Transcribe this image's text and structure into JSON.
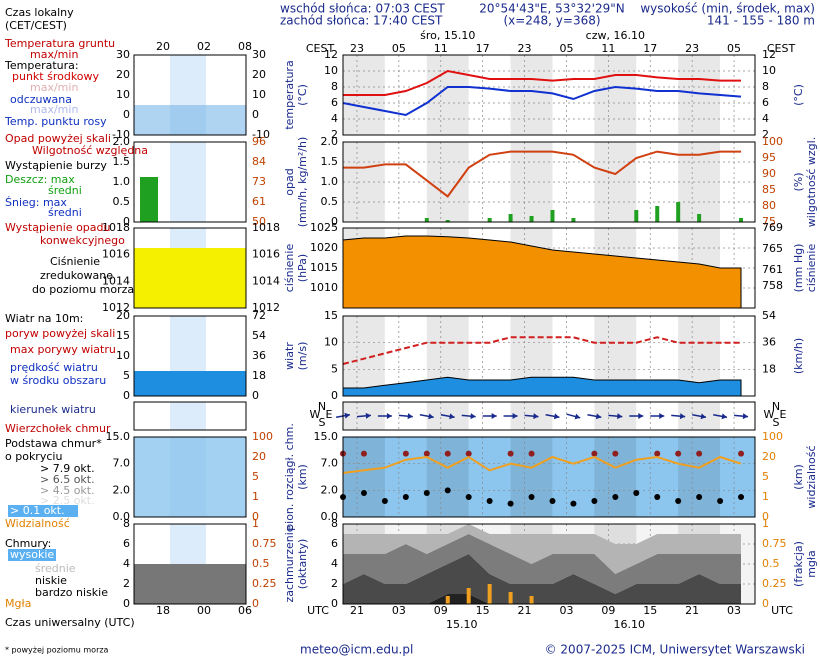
{
  "header": {
    "sunrise": "wschód słońca: 07:03 CEST",
    "sunset": "zachód słońca: 17:40 CEST",
    "coords": "20°54'43\"E, 53°32'29\"N",
    "grid_point": "(x=248, y=368)",
    "elevation_title": "wysokość (min, środek, max)",
    "elevation": "141 - 155 - 180 m"
  },
  "legend": {
    "local_time": [
      "Czas lokalny",
      "(CET/CEST)"
    ],
    "utc_time": "Czas uniwersalny (UTC)",
    "time_top": [
      "20",
      "02",
      "08"
    ],
    "time_bottom": [
      "18",
      "00",
      "06"
    ],
    "texts": {
      "ground": "Temperatura gruntu",
      "maxmin": "max/min",
      "temperature": "Temperatura:",
      "dew": "Temp. punktu rosy",
      "precip_over": "Opad powyżej skali",
      "storm": "Wystąpienie burzy",
      "rain_max": "Deszcz: max",
      "snow_max": "Śnieg: max",
      "snow_mean": "średni",
      "convective": [
        "Wystąpienie opadu",
        "konwekcyjnego"
      ],
      "pressure": [
        "zredukowane",
        "do poziomu morza"
      ],
      "wind10": "Wiatr na 10m:",
      "gust_over": "poryw powyżej skali",
      "wind_mid": "w środku obszaru",
      "cloud_top": "Wierzchołek chmur",
      "cloud_base": [
        "Podstawa chmur*",
        "o pokryciu"
      ],
      "okt45": "> 4.5 okt.",
      "okt25": "> 2.5 okt.",
      "okt01": "> 0.1 okt.",
      "clouds": "Chmury:"
    },
    "panels": [
      {
        "left_ticks": [
          30,
          20,
          10,
          0,
          -10
        ],
        "right_ticks": [
          30,
          20,
          10,
          0,
          -10
        ]
      },
      {
        "left_ticks": [
          "2.0",
          1.5,
          "1.0",
          0.5,
          0
        ],
        "right_ticks": [
          96,
          84,
          73,
          61,
          50
        ]
      },
      {
        "left_ticks": [
          1018,
          1016,
          1014,
          1012
        ],
        "right_ticks": [
          1018,
          1016,
          1014,
          1012
        ]
      },
      {
        "left_ticks": [
          20,
          15,
          10,
          5,
          0
        ],
        "right_ticks": [
          72,
          54,
          36,
          18,
          0
        ]
      },
      {
        "left_ticks": [],
        "right_ticks": []
      },
      {
        "left_ticks": [
          "15.0",
          "7.0",
          "2.0",
          "0.0"
        ],
        "right_ticks": [
          100,
          20,
          5,
          1,
          0
        ]
      },
      {
        "left_ticks": [
          8,
          6,
          4,
          2,
          0
        ],
        "right_ticks": [
          1,
          0.75,
          0.5,
          0.25,
          0
        ]
      }
    ]
  },
  "time_axis": {
    "xlim": [
      0,
      59
    ],
    "top_label": "CEST",
    "bottom_label": "UTC",
    "cest_ticks": [
      {
        "value": 2,
        "label": "23"
      },
      {
        "value": 8,
        "label": "05"
      },
      {
        "value": 14,
        "label": "11"
      },
      {
        "value": 20,
        "label": "17"
      },
      {
        "value": 26,
        "label": "23"
      },
      {
        "value": 32,
        "label": "05"
      },
      {
        "value": 38,
        "label": "11"
      },
      {
        "value": 44,
        "label": "17"
      },
      {
        "value": 50,
        "label": "23"
      },
      {
        "value": 56,
        "label": "05"
      }
    ],
    "utc_ticks": [
      {
        "value": 2,
        "label": "21"
      },
      {
        "value": 8,
        "label": "03"
      },
      {
        "value": 14,
        "label": "09"
      },
      {
        "value": 20,
        "label": "15"
      },
      {
        "value": 26,
        "label": "21"
      },
      {
        "value": 32,
        "label": "03"
      },
      {
        "value": 38,
        "label": "09"
      },
      {
        "value": 44,
        "label": "15"
      },
      {
        "value": 50,
        "label": "21"
      },
      {
        "value": 56,
        "label": "03"
      }
    ],
    "days_top": [
      {
        "value": 15,
        "label": "śro, 15.10"
      },
      {
        "value": 39,
        "label": "czw, 16.10"
      }
    ],
    "days_bottom": [
      {
        "value": 17,
        "label": "15.10"
      },
      {
        "value": 41,
        "label": "16.10"
      }
    ]
  },
  "chart_data": [
    {
      "type": "line",
      "ylabel": [
        "temperatura",
        "(°C)"
      ],
      "y2label": [
        "(°C)"
      ],
      "ylim": [
        2,
        12
      ],
      "yticks": [
        2,
        4,
        6,
        8,
        10,
        12
      ],
      "y2lim": [
        2,
        12
      ],
      "y2ticks": [
        2,
        4,
        6,
        8,
        10,
        12
      ],
      "grid": true,
      "background": "#ffffff",
      "x": [
        0,
        3,
        6,
        9,
        12,
        15,
        18,
        21,
        24,
        27,
        30,
        33,
        36,
        39,
        42,
        45,
        48,
        51,
        54,
        57
      ],
      "series": [
        {
          "name": "punkt środkowy",
          "color": "#e01010",
          "values": [
            7,
            7,
            7,
            7.5,
            8.5,
            10,
            9.5,
            9,
            9,
            9,
            8.8,
            9,
            9,
            9.5,
            9.5,
            9.2,
            9,
            9,
            8.8,
            8.8
          ]
        },
        {
          "name": "odczuwana",
          "color": "#1030d0",
          "values": [
            6,
            5.5,
            5,
            4.5,
            6,
            8,
            8,
            7.8,
            7.5,
            7.5,
            7.2,
            6.5,
            7.5,
            8,
            7.8,
            7.5,
            7.5,
            7.2,
            7,
            6.8
          ]
        }
      ]
    },
    {
      "type": "bar",
      "ylabel": [
        "opad",
        "(mm/h, kg/m²/h)"
      ],
      "y2label": [
        "(%)",
        "wilgotność wzgl."
      ],
      "ylim": [
        0,
        2
      ],
      "yticks": [
        0,
        0.5,
        {
          "value": 1,
          "label": "1.0"
        },
        1.5,
        {
          "value": 2,
          "label": "2.0"
        }
      ],
      "y2lim": [
        75,
        100
      ],
      "y2ticks": [
        75,
        80,
        85,
        90,
        95,
        100
      ],
      "y2color": "#c04000",
      "grid": true,
      "background": "#ffffff",
      "x": [
        0,
        3,
        6,
        9,
        12,
        15,
        18,
        21,
        24,
        27,
        30,
        33,
        36,
        39,
        42,
        45,
        48,
        51,
        54,
        57
      ],
      "series": [
        {
          "name": "średni",
          "color": "#20a020",
          "values": [
            0,
            0,
            0,
            0,
            0.1,
            0.05,
            0,
            0.1,
            0.2,
            0.15,
            0.3,
            0.1,
            0,
            0,
            0.3,
            0.4,
            0.5,
            0.2,
            0,
            0.1
          ]
        },
        {
          "name": "Wilgotność względna",
          "type": "line",
          "axis": "y2",
          "color": "#d04010",
          "values": [
            92,
            92,
            93,
            93,
            88,
            83,
            92,
            96,
            97,
            97,
            97,
            96,
            92,
            90,
            95,
            97,
            96,
            96,
            97,
            97
          ]
        }
      ]
    },
    {
      "type": "area",
      "ylabel": [
        "ciśnienie",
        "(hPa)"
      ],
      "y2label": [
        "(mm Hg)",
        "ciśnienie"
      ],
      "ylim": [
        1005,
        1025
      ],
      "yticks": [
        1010,
        1015,
        1020,
        1025
      ],
      "y2lim": [
        753.8,
        769
      ],
      "y2ticks": [
        758,
        761,
        765,
        769
      ],
      "grid": true,
      "background": "#ffffff",
      "x": [
        0,
        3,
        6,
        9,
        12,
        15,
        18,
        21,
        24,
        27,
        30,
        33,
        36,
        39,
        42,
        45,
        48,
        51,
        54,
        57
      ],
      "series": [
        {
          "name": "Ciśnienie",
          "color": "#f39000",
          "values": [
            1022,
            1022.5,
            1022.5,
            1023,
            1023,
            1022.8,
            1022.5,
            1022,
            1021.5,
            1020.5,
            1019.5,
            1019,
            1018.5,
            1018,
            1017.5,
            1017,
            1016.5,
            1016,
            1015,
            1015
          ]
        }
      ]
    },
    {
      "type": "area",
      "ylabel": [
        "wiatr",
        "(m/s)"
      ],
      "y2label": [
        "(km/h)"
      ],
      "ylim": [
        0,
        15
      ],
      "yticks": [
        0,
        5,
        10,
        15
      ],
      "y2lim": [
        0,
        54
      ],
      "y2ticks": [
        18,
        36,
        54
      ],
      "grid": true,
      "background": "#ffffff",
      "x": [
        0,
        3,
        6,
        9,
        12,
        15,
        18,
        21,
        24,
        27,
        30,
        33,
        36,
        39,
        42,
        45,
        48,
        51,
        54,
        57
      ],
      "series": [
        {
          "name": "prędkość wiatru",
          "color": "#1e8ee0",
          "values": [
            1.5,
            1.5,
            2,
            2.5,
            3,
            3.5,
            3,
            3,
            3,
            3.5,
            3.5,
            3.5,
            3,
            3,
            3,
            3,
            3,
            2.5,
            3,
            3
          ]
        },
        {
          "name": "max porywy wiatru",
          "type": "line",
          "dashed": true,
          "color": "#d02020",
          "values": [
            6,
            7,
            8,
            9,
            10,
            10,
            10,
            10,
            11,
            11,
            11,
            11,
            10,
            10,
            10,
            11,
            10,
            10,
            10,
            10
          ]
        }
      ]
    },
    {
      "type": "arrows",
      "compass": {
        "n": "N",
        "s": "S",
        "w": "W",
        "e": "E"
      },
      "background": "#ffffff",
      "x": [
        0,
        3,
        6,
        9,
        12,
        15,
        18,
        21,
        24,
        27,
        30,
        33,
        36,
        39,
        42,
        45,
        48,
        51,
        54,
        57
      ],
      "series": [
        {
          "name": "kierunek wiatru",
          "color": "#1a2a8c",
          "values": [
            80,
            85,
            90,
            95,
            100,
            100,
            95,
            90,
            90,
            95,
            100,
            105,
            100,
            95,
            90,
            90,
            95,
            100,
            100,
            95
          ]
        }
      ]
    },
    {
      "type": "scatter",
      "yscale": "piecewise",
      "ylabel": [
        "pion. rozciągł. chm.",
        "(km)"
      ],
      "y2label": [
        "(km)",
        "widzialność"
      ],
      "ylim": [
        0,
        15
      ],
      "yticks": [
        {
          "value": 0,
          "label": "0.0"
        },
        {
          "value": 2,
          "label": "2.0"
        },
        {
          "value": 7,
          "label": "7.0"
        },
        {
          "value": 15,
          "label": "15.0"
        }
      ],
      "y2lim": [
        0,
        100
      ],
      "y2ticks": [
        0,
        1,
        5,
        20,
        100
      ],
      "y2color": "#e08000",
      "grid": true,
      "background": "#8cc6ee",
      "x": [
        0,
        3,
        6,
        9,
        12,
        15,
        18,
        21,
        24,
        27,
        30,
        33,
        36,
        39,
        42,
        45,
        48,
        51,
        54,
        57
      ],
      "series": [
        {
          "name": "> 7.9 okt.",
          "color": "#902020",
          "values": [
            10,
            10,
            null,
            10,
            10,
            10,
            10,
            null,
            10,
            10,
            null,
            null,
            10,
            10,
            null,
            10,
            10,
            10,
            null,
            10
          ]
        },
        {
          "name": "> 6.5 okt.",
          "color": "#000000",
          "values": [
            1.5,
            1.8,
            1.2,
            1.5,
            1.8,
            2,
            1.5,
            1.2,
            1,
            1.5,
            1.2,
            1,
            1.2,
            1.5,
            1.8,
            1.5,
            1.2,
            1.5,
            1.2,
            1.5
          ]
        },
        {
          "name": "Widzialność",
          "type": "line",
          "axis": "y2",
          "color": "#f0a020",
          "values": [
            8,
            10,
            12,
            18,
            20,
            12,
            20,
            10,
            15,
            12,
            20,
            15,
            20,
            12,
            18,
            20,
            15,
            12,
            20,
            15
          ]
        }
      ]
    },
    {
      "type": "stacked-area",
      "ylabel": [
        "zachmurzenie",
        "(oktanty)"
      ],
      "y2label": [
        "(frakcja)",
        "mgła"
      ],
      "ylim": [
        0,
        8
      ],
      "yticks": [
        0,
        2,
        4,
        6,
        8
      ],
      "y2lim": [
        0,
        1
      ],
      "y2ticks": [
        0,
        0.25,
        0.5,
        0.75,
        1
      ],
      "y2color": "#e08000",
      "grid": true,
      "background": "#f4f4f4",
      "x": [
        0,
        3,
        6,
        9,
        12,
        15,
        18,
        21,
        24,
        27,
        30,
        33,
        36,
        39,
        42,
        45,
        48,
        51,
        54,
        57
      ],
      "series": [
        {
          "name": "bardzo niskie",
          "color": "#222222",
          "values": [
            0,
            0,
            0,
            0,
            0,
            1,
            1,
            0,
            0,
            0,
            0,
            0,
            0,
            0,
            0,
            0,
            0,
            0,
            0,
            0
          ]
        },
        {
          "name": "niskie",
          "color": "#4a4a4a",
          "values": [
            2,
            3,
            2,
            2,
            3,
            3,
            4,
            3,
            2,
            2,
            2,
            3,
            2,
            1,
            2,
            2,
            2,
            3,
            2,
            2
          ]
        },
        {
          "name": "średnie",
          "color": "#7c7c7c",
          "values": [
            3,
            2,
            3,
            4,
            2,
            2,
            2,
            3,
            3,
            2,
            3,
            2,
            3,
            2,
            2,
            3,
            3,
            2,
            3,
            3
          ]
        },
        {
          "name": "wysokie",
          "color": "#b4b4b4",
          "values": [
            2,
            2,
            2,
            1,
            2,
            1,
            1,
            1,
            2,
            3,
            2,
            2,
            2,
            3,
            2,
            2,
            2,
            2,
            2,
            2
          ]
        },
        {
          "name": "Mgła",
          "type": "bar",
          "axis": "y2",
          "color": "#f0a020",
          "values": [
            0,
            0,
            0,
            0,
            0,
            0.1,
            0.2,
            0.25,
            0.15,
            0.1,
            0,
            0,
            0,
            0,
            0,
            0,
            0,
            0,
            0,
            0
          ]
        }
      ]
    }
  ],
  "footer": {
    "note": "* powyżej poziomu morza",
    "email": "meteo@icm.edu.pl",
    "copyright": "© 2007-2025 ICM, Uniwersytet Warszawski"
  }
}
